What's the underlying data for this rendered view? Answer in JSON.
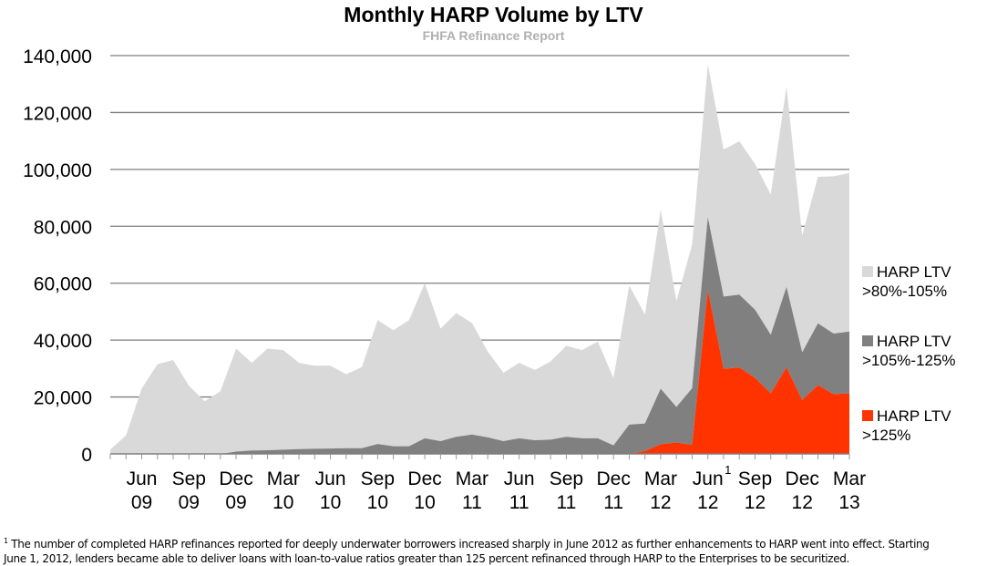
{
  "chart_data": {
    "type": "area",
    "stacked": true,
    "title": "Monthly HARP Volume by LTV",
    "subtitle": "FHFA Refinance Report",
    "xlabel": "",
    "ylabel": "",
    "ylim": [
      0,
      140000
    ],
    "yticks": [
      0,
      20000,
      40000,
      60000,
      80000,
      100000,
      120000,
      140000
    ],
    "ytick_labels": [
      "0",
      "20,000",
      "40,000",
      "60,000",
      "80,000",
      "100,000",
      "120,000",
      "140,000"
    ],
    "grid": true,
    "legend_position": "right",
    "x": [
      "Apr 09",
      "May 09",
      "Jun 09",
      "Jul 09",
      "Aug 09",
      "Sep 09",
      "Oct 09",
      "Nov 09",
      "Dec 09",
      "Jan 10",
      "Feb 10",
      "Mar 10",
      "Apr 10",
      "May 10",
      "Jun 10",
      "Jul 10",
      "Aug 10",
      "Sep 10",
      "Oct 10",
      "Nov 10",
      "Dec 10",
      "Jan 11",
      "Feb 11",
      "Mar 11",
      "Apr 11",
      "May 11",
      "Jun 11",
      "Jul 11",
      "Aug 11",
      "Sep 11",
      "Oct 11",
      "Nov 11",
      "Dec 11",
      "Jan 12",
      "Feb 12",
      "Mar 12",
      "Apr 12",
      "May 12",
      "Jun 12",
      "Jul 12",
      "Aug 12",
      "Sep 12",
      "Oct 12",
      "Nov 12",
      "Dec 12",
      "Jan 13",
      "Feb 13",
      "Mar 13"
    ],
    "xtick_labels": [
      {
        "month": "Jun",
        "year": "09",
        "index": 2
      },
      {
        "month": "Sep",
        "year": "09",
        "index": 5
      },
      {
        "month": "Dec",
        "year": "09",
        "index": 8
      },
      {
        "month": "Mar",
        "year": "10",
        "index": 11
      },
      {
        "month": "Jun",
        "year": "10",
        "index": 14
      },
      {
        "month": "Sep",
        "year": "10",
        "index": 17
      },
      {
        "month": "Dec",
        "year": "10",
        "index": 20
      },
      {
        "month": "Mar",
        "year": "11",
        "index": 23
      },
      {
        "month": "Jun",
        "year": "11",
        "index": 26
      },
      {
        "month": "Sep",
        "year": "11",
        "index": 29
      },
      {
        "month": "Dec",
        "year": "11",
        "index": 32
      },
      {
        "month": "Mar",
        "year": "12",
        "index": 35
      },
      {
        "month": "Jun",
        "year": "12",
        "index": 38,
        "footnote_marker": "1"
      },
      {
        "month": "Sep",
        "year": "12",
        "index": 41
      },
      {
        "month": "Dec",
        "year": "12",
        "index": 44
      },
      {
        "month": "Mar",
        "year": "13",
        "index": 47
      }
    ],
    "series": [
      {
        "name": "HARP LTV >125%",
        "color": "#ff3300",
        "values": [
          0,
          0,
          0,
          0,
          0,
          0,
          0,
          0,
          0,
          0,
          0,
          0,
          0,
          0,
          0,
          0,
          0,
          0,
          0,
          0,
          0,
          0,
          0,
          0,
          0,
          0,
          0,
          0,
          0,
          0,
          0,
          0,
          0,
          0,
          1000,
          3400,
          4000,
          3200,
          57600,
          29900,
          30400,
          26700,
          21300,
          30400,
          18900,
          24200,
          21000,
          21300
        ]
      },
      {
        "name": "HARP LTV >105%-125%",
        "color": "#808080",
        "values": [
          0,
          0,
          0,
          0,
          0,
          0,
          0,
          0,
          800,
          1200,
          1300,
          1500,
          1700,
          1800,
          1900,
          2000,
          2000,
          3500,
          2700,
          2700,
          5500,
          4500,
          6000,
          6800,
          5800,
          4500,
          5500,
          4800,
          5000,
          6000,
          5500,
          5500,
          3000,
          10300,
          9700,
          19500,
          12500,
          19900,
          25600,
          25400,
          25600,
          24000,
          20600,
          28300,
          16800,
          21700,
          21300,
          21700
        ]
      },
      {
        "name": "HARP LTV >80%-105%",
        "color": "#d9d9d9",
        "values": [
          1500,
          6500,
          23000,
          31500,
          33000,
          24000,
          18500,
          22000,
          36200,
          30800,
          35700,
          35000,
          30300,
          29200,
          29100,
          26000,
          28500,
          43500,
          40800,
          44300,
          54500,
          39500,
          43500,
          39200,
          30200,
          24000,
          26500,
          24700,
          27500,
          32000,
          31000,
          34000,
          23600,
          48900,
          38300,
          63000,
          37200,
          50500,
          53700,
          51700,
          53900,
          51200,
          49300,
          70400,
          41100,
          51500,
          55300,
          55700
        ]
      }
    ],
    "totals": [
      1500,
      6500,
      23000,
      31500,
      33000,
      24000,
      18500,
      22000,
      37000,
      32000,
      37000,
      36500,
      32000,
      31000,
      31000,
      28000,
      30500,
      47000,
      43500,
      47000,
      60000,
      44000,
      49500,
      46000,
      36000,
      28500,
      32000,
      29500,
      32500,
      38000,
      36500,
      39500,
      26600,
      59200,
      49000,
      85900,
      53700,
      73600,
      136900,
      107000,
      109900,
      101900,
      91200,
      129100,
      76800,
      97400,
      97600,
      98700
    ]
  },
  "legend": [
    {
      "line1": "HARP LTV",
      "line2": ">80%-105%",
      "color": "#d9d9d9"
    },
    {
      "line1": "HARP LTV",
      "line2": ">105%-125%",
      "color": "#808080"
    },
    {
      "line1": "HARP LTV",
      "line2": ">125%",
      "color": "#ff3300"
    }
  ],
  "footnote": {
    "marker": "1",
    "line1": " The number of completed HARP refinances reported for deeply underwater borrowers increased sharply in June 2012 as further enhancements to HARP went into effect.  Starting",
    "line2": "June 1, 2012, lenders became able to deliver loans with loan-to-value ratios greater than 125 percent refinanced through HARP to the Enterprises to be securitized."
  }
}
